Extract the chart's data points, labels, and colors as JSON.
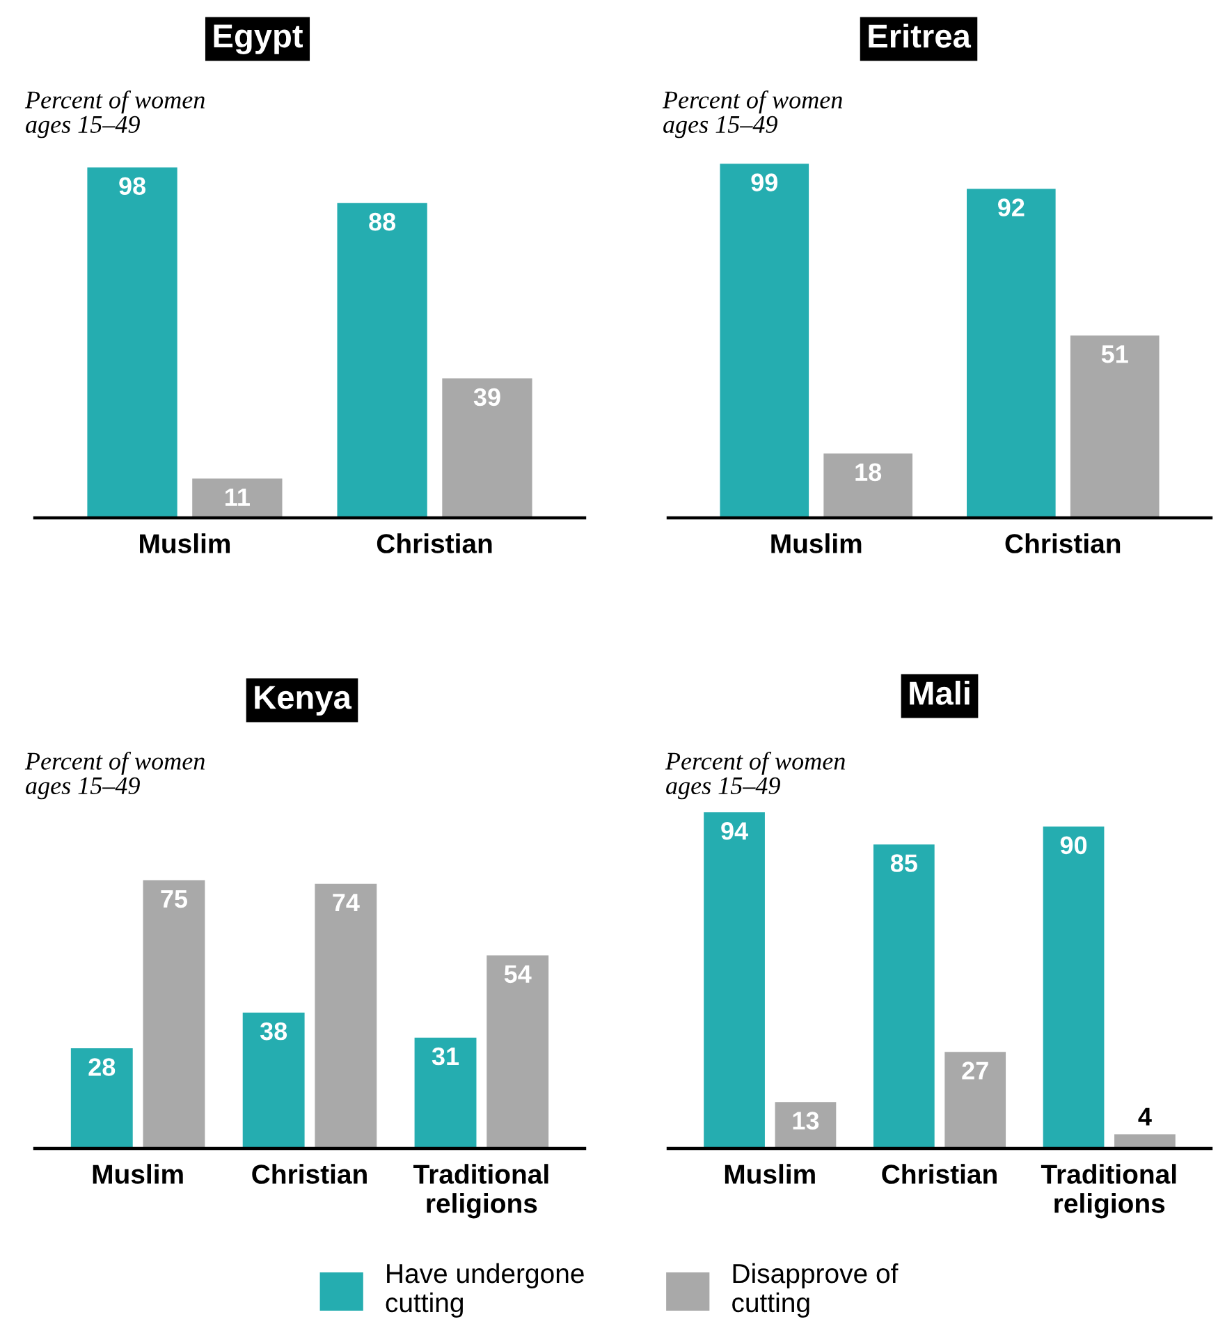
{
  "chart_data": [
    {
      "type": "bar",
      "title": "Egypt",
      "subtitle": "Percent of women ages 15–49",
      "categories": [
        "Muslim",
        "Christian"
      ],
      "data_labels": true,
      "series": [
        {
          "color": "#25adb0",
          "values": [
            98,
            88
          ]
        },
        {
          "color": "#a9a9a9",
          "values": [
            11,
            39
          ]
        }
      ]
    },
    {
      "type": "bar",
      "title": "Eritrea",
      "subtitle": "Percent of women ages 15–49",
      "categories": [
        "Muslim",
        "Christian"
      ],
      "data_labels": true,
      "series": [
        {
          "color": "#25adb0",
          "values": [
            99,
            92
          ]
        },
        {
          "color": "#a9a9a9",
          "values": [
            18,
            51
          ]
        }
      ]
    },
    {
      "type": "bar",
      "title": "Kenya",
      "subtitle": "Percent of women ages 15–49",
      "categories": [
        "Muslim",
        "Christian",
        "Traditional religions"
      ],
      "data_labels": true,
      "series": [
        {
          "color": "#25adb0",
          "values": [
            28,
            38,
            31
          ]
        },
        {
          "color": "#a9a9a9",
          "values": [
            75,
            74,
            54
          ]
        }
      ]
    },
    {
      "type": "bar",
      "title": "Mali",
      "subtitle": "Percent of women ages 15–49",
      "categories": [
        "Muslim",
        "Christian",
        "Traditional religions"
      ],
      "data_labels": true,
      "legend": "bottom",
      "series": [
        {
          "name": "Have undergone cutting",
          "color": "#25adb0",
          "values": [
            94,
            85,
            90
          ]
        },
        {
          "name": "Disapprove of cutting",
          "color": "#a9a9a9",
          "values": [
            13,
            27,
            4
          ]
        }
      ]
    }
  ]
}
